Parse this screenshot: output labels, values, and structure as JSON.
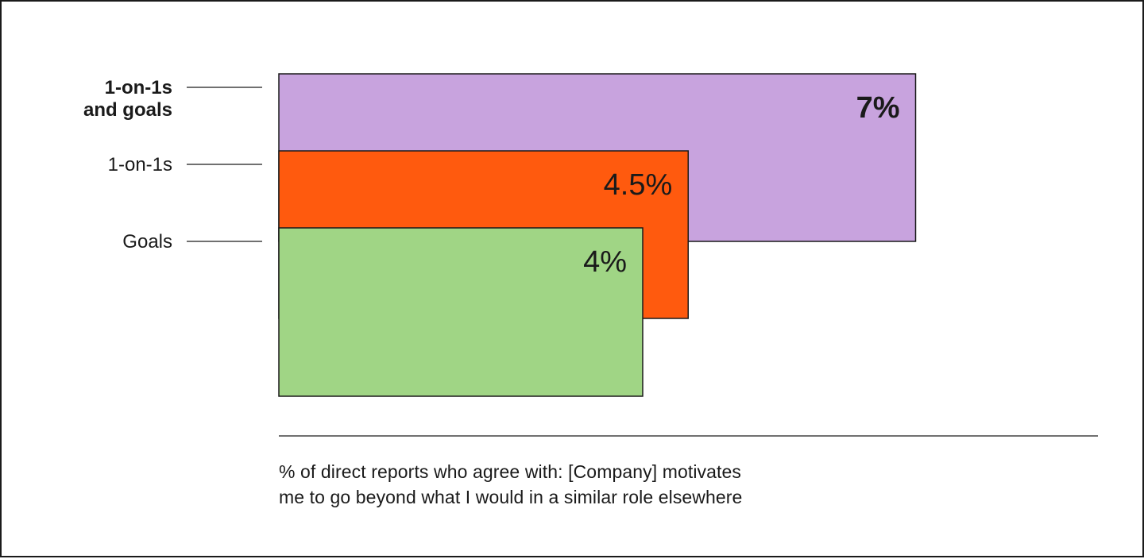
{
  "chart_data": {
    "type": "bar",
    "orientation": "overlapping-horizontal",
    "categories": [
      "1-on-1s and goals",
      "1-on-1s",
      "Goals"
    ],
    "category_label_lines": [
      [
        "1-on-1s",
        "and goals"
      ],
      [
        "1-on-1s"
      ],
      [
        "Goals"
      ]
    ],
    "values": [
      7,
      4.5,
      4
    ],
    "value_labels": [
      "7%",
      "4.5%",
      "4%"
    ],
    "colors": [
      "#c8a3de",
      "#ff5a0e",
      "#a0d585"
    ],
    "emphasis": [
      true,
      false,
      false
    ],
    "unit": "%",
    "xlim": [
      0,
      7
    ],
    "grid": false,
    "caption_lines": [
      "% of direct reports who agree with: [Company] motivates",
      "me to go beyond what I would in a similar role elsewhere"
    ]
  }
}
